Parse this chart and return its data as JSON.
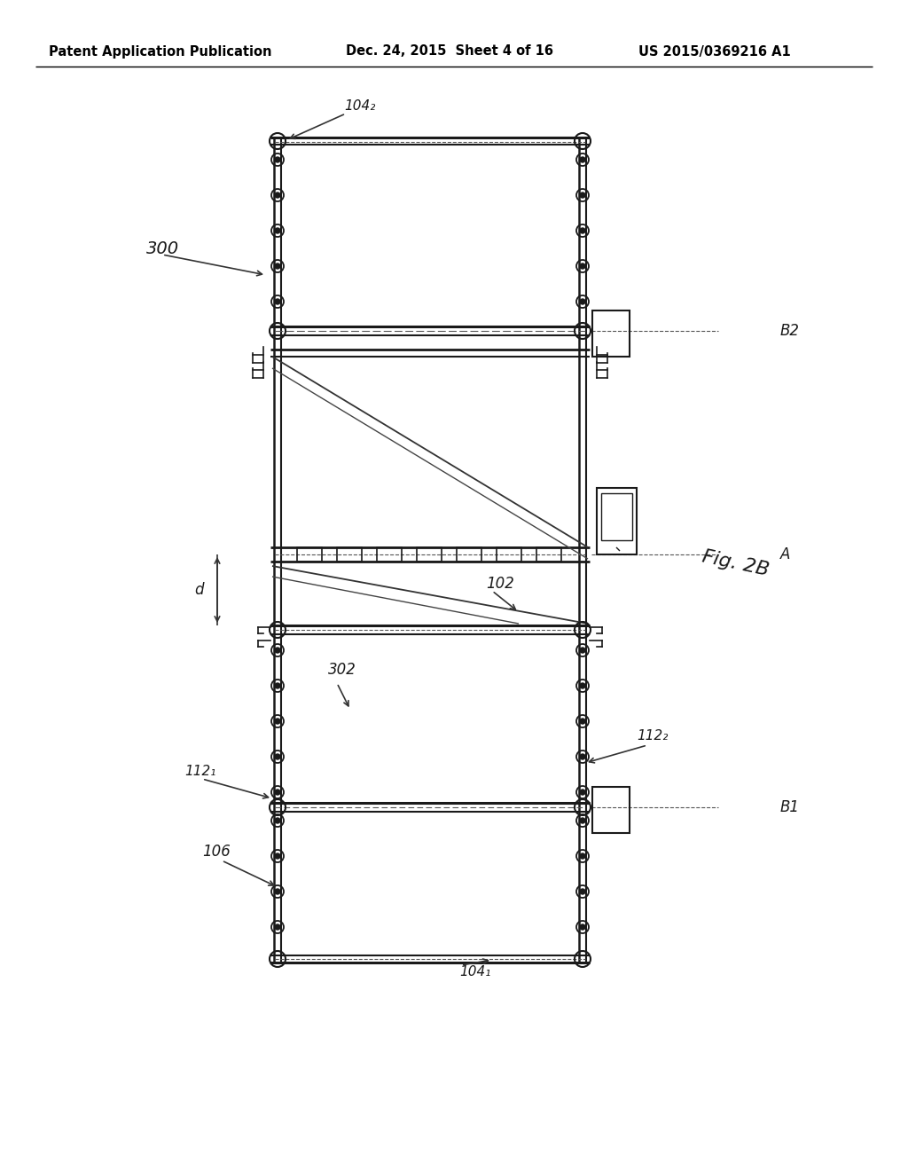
{
  "background_color": "#ffffff",
  "header_text": "Patent Application Publication",
  "header_date": "Dec. 24, 2015  Sheet 4 of 16",
  "header_patent": "US 2015/0369216 A1",
  "fig_label": "Fig. 2B",
  "label_300": "300",
  "label_104_2": "104₂",
  "label_104_1": "104₁",
  "label_B2": "B2",
  "label_B1": "B1",
  "label_A": "A",
  "label_102": "102",
  "label_302": "302",
  "label_106": "106",
  "label_112_1": "112₁",
  "label_112_2": "112₂",
  "label_d": "d",
  "line_color": "#1a1a1a",
  "dashed_color": "#555555"
}
